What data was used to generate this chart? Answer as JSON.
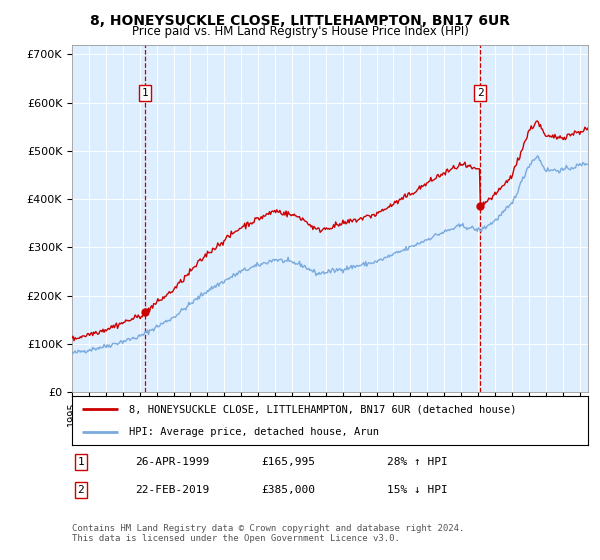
{
  "title": "8, HONEYSUCKLE CLOSE, LITTLEHAMPTON, BN17 6UR",
  "subtitle": "Price paid vs. HM Land Registry's House Price Index (HPI)",
  "ylim": [
    0,
    720000
  ],
  "yticks": [
    0,
    100000,
    200000,
    300000,
    400000,
    500000,
    600000,
    700000
  ],
  "ytick_labels": [
    "£0",
    "£100K",
    "£200K",
    "£300K",
    "£400K",
    "£500K",
    "£600K",
    "£700K"
  ],
  "legend_line1": "8, HONEYSUCKLE CLOSE, LITTLEHAMPTON, BN17 6UR (detached house)",
  "legend_line2": "HPI: Average price, detached house, Arun",
  "annotation1_date": "26-APR-1999",
  "annotation1_price": "£165,995",
  "annotation1_hpi": "28% ↑ HPI",
  "annotation2_date": "22-FEB-2019",
  "annotation2_price": "£385,000",
  "annotation2_hpi": "15% ↓ HPI",
  "footnote": "Contains HM Land Registry data © Crown copyright and database right 2024.\nThis data is licensed under the Open Government Licence v3.0.",
  "sale1_x": 1999.32,
  "sale1_y": 165995,
  "sale2_x": 2019.13,
  "sale2_y": 385000,
  "line_color_red": "#cc0000",
  "line_color_blue": "#7aaadd",
  "background_color": "#ddeeff",
  "xlim_left": 1995.0,
  "xlim_right": 2025.5
}
